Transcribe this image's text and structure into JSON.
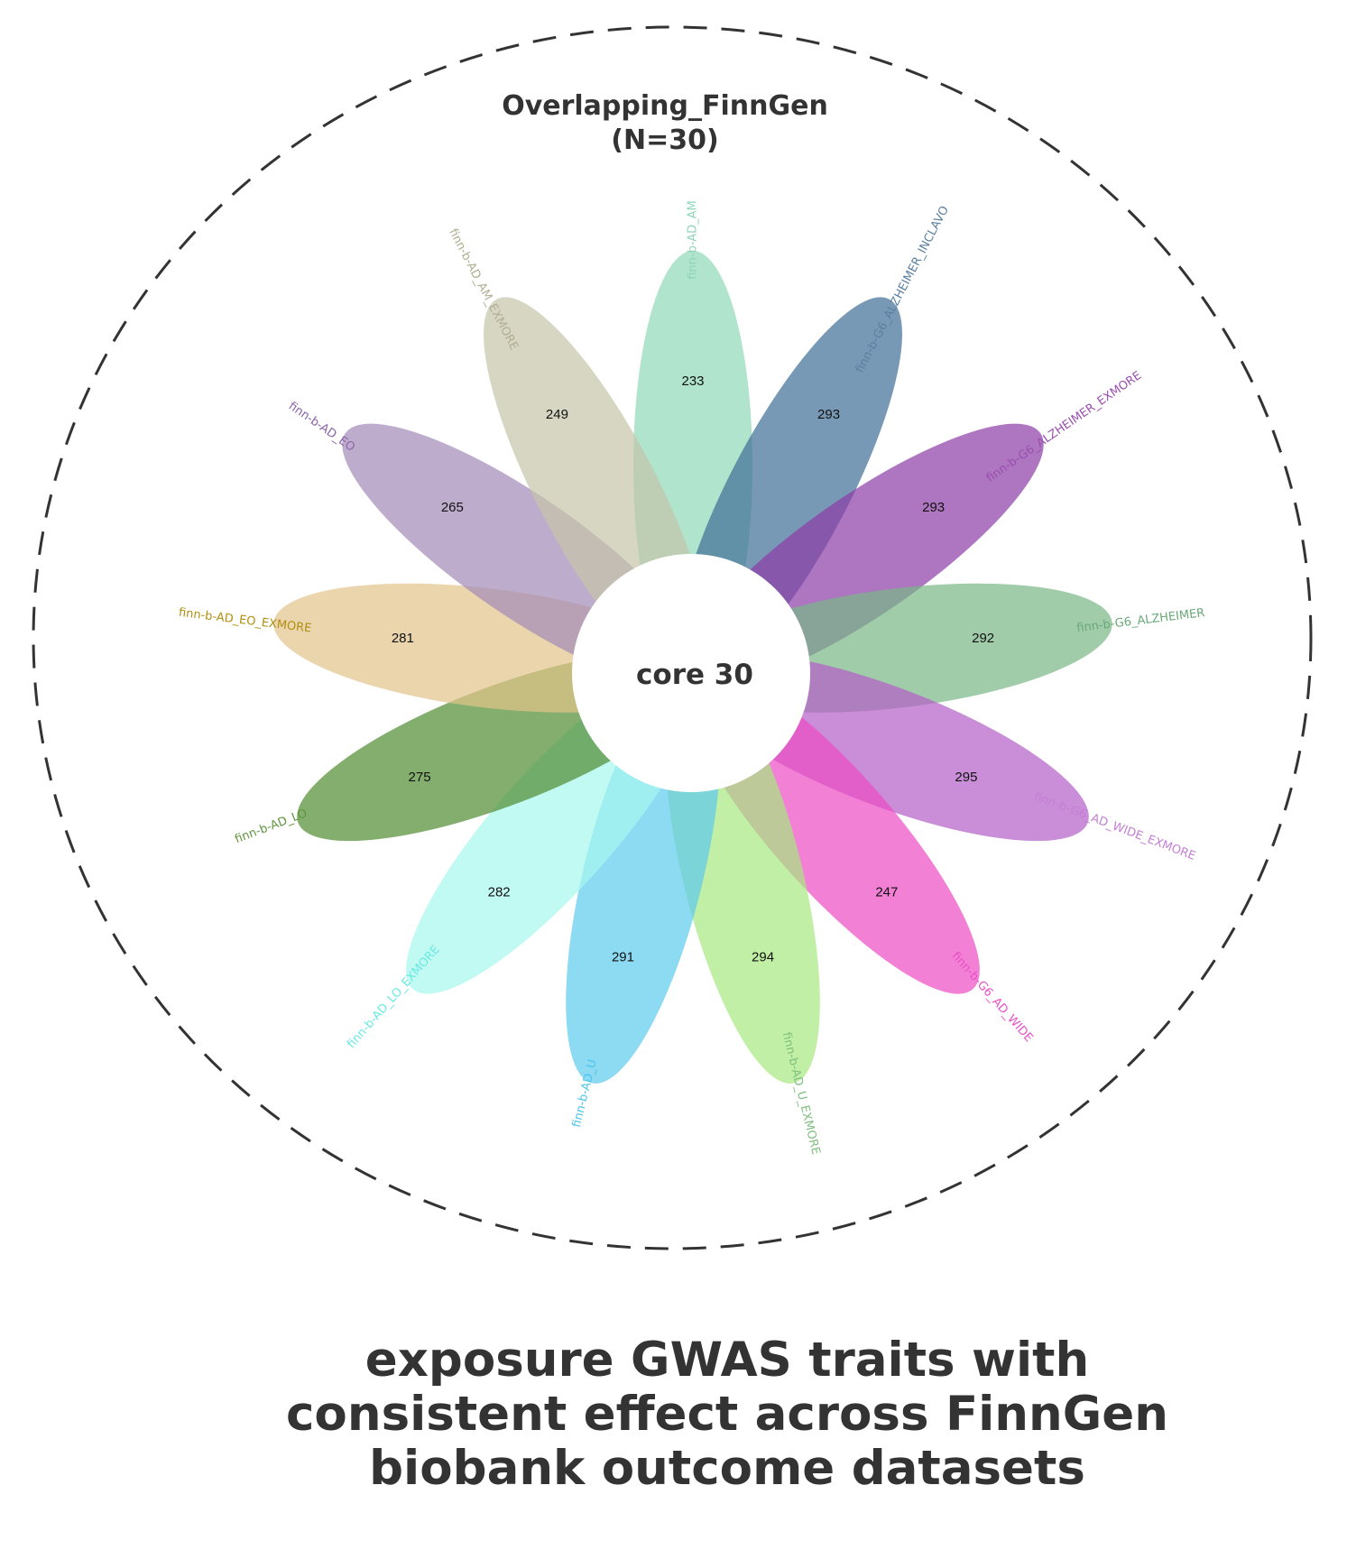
{
  "chart_data": {
    "type": "flower",
    "title": "Overlapping_FinnGen",
    "subtitle": "(N=30)",
    "core_label": "core 30",
    "petals": [
      {
        "name": "finn-b-AD_AM",
        "value": 233,
        "color": "#8fd9b8"
      },
      {
        "name": "finn-b-G6_ALZHEIMER_INCLAVO",
        "value": 293,
        "color": "#3f6e96"
      },
      {
        "name": "finn-b-G6_ALZHEIMER_EXMORE",
        "value": 293,
        "color": "#8b3aa6"
      },
      {
        "name": "finn-b-G6_ALZHEIMER",
        "value": 292,
        "color": "#77b784"
      },
      {
        "name": "finn-b-G6_AD_WIDE_EXMORE",
        "value": 295,
        "color": "#b45cc8"
      },
      {
        "name": "finn-b-G6_AD_WIDE",
        "value": 247,
        "color": "#ec4cc4"
      },
      {
        "name": "finn-b-AD_U_EXMORE",
        "value": 294,
        "color": "#a7e87f"
      },
      {
        "name": "finn-b-AD_U",
        "value": 291,
        "color": "#5ccbee"
      },
      {
        "name": "finn-b-AD_LO_EXMORE",
        "value": 282,
        "color": "#a6f6ee"
      },
      {
        "name": "finn-b-AD_LO",
        "value": 275,
        "color": "#4e8b2f"
      },
      {
        "name": "finn-b-AD_EO_EXMORE",
        "value": 281,
        "color": "#e3c38a"
      },
      {
        "name": "finn-b-AD_EO",
        "value": 265,
        "color": "#a389b8"
      },
      {
        "name": "finn-b-AD_AM_EXMORE",
        "value": 249,
        "color": "#c4c4aa"
      }
    ],
    "label_colors": [
      "#8ed6b6",
      "#5a7fa0",
      "#9a4fb0",
      "#6aa878",
      "#c47fd4",
      "#e84fc6",
      "#7fbf7f",
      "#4cc3ea",
      "#6be9e2",
      "#5f9640",
      "#b08f10",
      "#8d62a8",
      "#b0ad90"
    ],
    "caption": "exposure GWAS traits with consistent effect across FinnGen biobank outcome datasets"
  }
}
